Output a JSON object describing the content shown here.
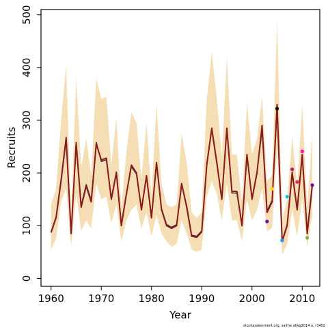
{
  "chart_data": {
    "type": "line",
    "xlabel": "Year",
    "ylabel": "Recruits",
    "xlim": [
      1958,
      2013.5
    ],
    "ylim": [
      -15,
      510
    ],
    "x_ticks": [
      1960,
      1970,
      1980,
      1990,
      2000,
      2010
    ],
    "y_ticks": [
      0,
      100,
      200,
      300,
      400,
      500
    ],
    "credit": "stockassessment.org, saithe afwg2014 a, r3452",
    "colors": {
      "band": "#F5DEB3",
      "main_line": "#3F2A4A",
      "secondary_line": "#8B1A1A",
      "axis": "#000000"
    },
    "confidence_band": {
      "x": [
        1960,
        1961,
        1962,
        1963,
        1964,
        1965,
        1966,
        1967,
        1968,
        1969,
        1970,
        1971,
        1972,
        1973,
        1974,
        1975,
        1976,
        1977,
        1978,
        1979,
        1980,
        1981,
        1982,
        1983,
        1984,
        1985,
        1986,
        1987,
        1988,
        1989,
        1990,
        1991,
        1992,
        1993,
        1994,
        1995,
        1996,
        1997,
        1998,
        1999,
        2000,
        2001,
        2002,
        2003,
        2004,
        2005,
        2006,
        2007,
        2008,
        2009,
        2010,
        2011,
        2012
      ],
      "lower": [
        55,
        75,
        145,
        170,
        60,
        160,
        90,
        110,
        95,
        180,
        150,
        155,
        105,
        140,
        70,
        110,
        130,
        140,
        95,
        125,
        80,
        120,
        85,
        70,
        60,
        65,
        110,
        85,
        55,
        50,
        55,
        155,
        185,
        160,
        110,
        180,
        110,
        110,
        70,
        150,
        110,
        130,
        170,
        90,
        95,
        245,
        45,
        65,
        130,
        80,
        150,
        60,
        120
      ],
      "upper": [
        140,
        170,
        300,
        405,
        120,
        380,
        210,
        265,
        195,
        380,
        340,
        345,
        215,
        305,
        135,
        240,
        315,
        295,
        190,
        295,
        160,
        330,
        180,
        140,
        135,
        140,
        275,
        220,
        125,
        115,
        125,
        340,
        430,
        340,
        230,
        420,
        235,
        235,
        145,
        335,
        235,
        265,
        345,
        185,
        195,
        490,
        110,
        150,
        270,
        175,
        330,
        135,
        275
      ]
    },
    "series": [
      {
        "values": [
          87,
          115,
          185,
          265,
          85,
          255,
          135,
          175,
          145,
          255,
          225,
          228,
          150,
          200,
          100,
          160,
          215,
          200,
          130,
          195,
          115,
          220,
          130,
          100,
          95,
          100,
          180,
          135,
          80,
          78,
          88,
          215,
          285,
          220,
          150,
          285,
          165,
          165,
          100,
          235,
          150,
          200,
          290,
          125,
          145,
          330,
          70,
          100,
          200,
          130,
          235,
          85,
          175
        ]
      },
      {
        "values": [
          88,
          117,
          188,
          268,
          88,
          258,
          138,
          178,
          148,
          258,
          222,
          225,
          152,
          202,
          102,
          162,
          212,
          198,
          132,
          192,
          118,
          218,
          132,
          102,
          97,
          102,
          178,
          138,
          82,
          80,
          90,
          218,
          282,
          218,
          152,
          282,
          162,
          162,
          102,
          232,
          152,
          202,
          282,
          128,
          148,
          318,
          72,
          102,
          202,
          132,
          232,
          88,
          178
        ]
      }
    ],
    "endpoints": {
      "years": [
        2003,
        2004,
        2005,
        2006,
        2007,
        2008,
        2009,
        2010,
        2011,
        2012
      ],
      "values": [
        108,
        170,
        322,
        72,
        155,
        207,
        183,
        241,
        77,
        177
      ],
      "colors": [
        "#6A0DAD",
        "#FFD700",
        "#000000",
        "#1E90FF",
        "#00BFFF",
        "#C2185B",
        "#E91E63",
        "#FF1493",
        "#7CB342",
        "#6A0DAD"
      ]
    }
  }
}
